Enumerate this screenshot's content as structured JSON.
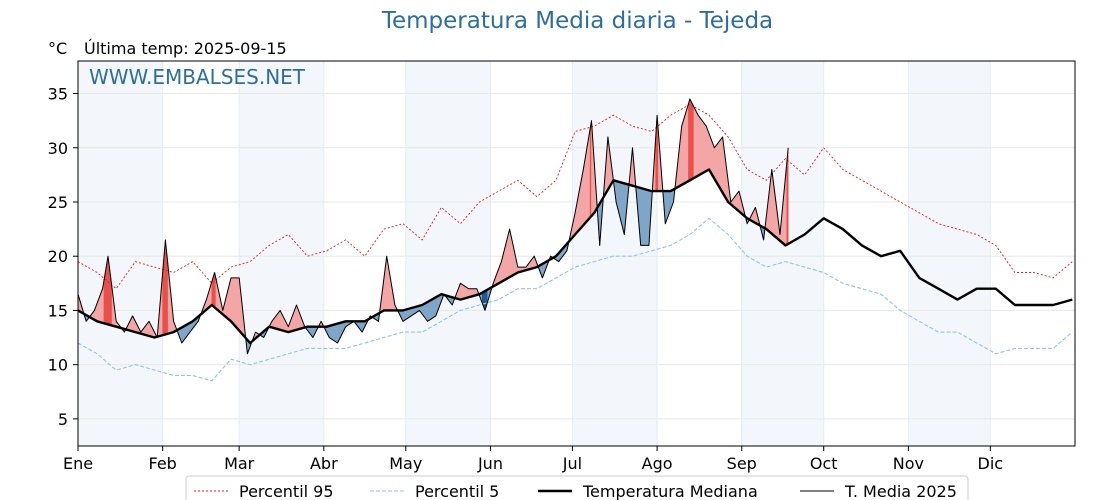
{
  "chart_data": {
    "type": "line",
    "title": "Temperatura Media diaria - Tejeda",
    "ylabel": "°C",
    "last_update_label": "Última temp: 2025-09-15",
    "watermark": "WWW.EMBALSES.NET",
    "ylim": [
      2.5,
      38
    ],
    "yticks": [
      5,
      10,
      15,
      20,
      25,
      30,
      35
    ],
    "x_axis": "day_of_year",
    "xlim": [
      1,
      366
    ],
    "month_ticks": [
      {
        "label": "Ene",
        "day": 1
      },
      {
        "label": "Feb",
        "day": 32
      },
      {
        "label": "Mar",
        "day": 60
      },
      {
        "label": "Abr",
        "day": 91
      },
      {
        "label": "May",
        "day": 121
      },
      {
        "label": "Jun",
        "day": 152
      },
      {
        "label": "Jul",
        "day": 182
      },
      {
        "label": "Ago",
        "day": 213
      },
      {
        "label": "Sep",
        "day": 244
      },
      {
        "label": "Oct",
        "day": 274
      },
      {
        "label": "Nov",
        "day": 305
      },
      {
        "label": "Dic",
        "day": 335
      }
    ],
    "grid": true,
    "legend_position": "bottom",
    "colors": {
      "p95": "#e31a1c",
      "p5": "#8fc7dc",
      "median": "#000000",
      "year": "#000000",
      "above_fill": "#f4a6a6",
      "above_fill_strong": "#e8504a",
      "below_fill": "#7fa6c8",
      "below_fill_strong": "#1f5a8f",
      "band_shade": "#f3f7fb",
      "title": "#2e6e9e"
    },
    "series": [
      {
        "name": "Percentil 95",
        "style": "dotted",
        "points": [
          [
            1,
            19.5
          ],
          [
            8,
            18.5
          ],
          [
            15,
            17
          ],
          [
            22,
            19.5
          ],
          [
            29,
            19
          ],
          [
            36,
            18.5
          ],
          [
            43,
            19.5
          ],
          [
            50,
            17.5
          ],
          [
            57,
            19
          ],
          [
            64,
            19.5
          ],
          [
            71,
            21
          ],
          [
            78,
            22
          ],
          [
            85,
            20
          ],
          [
            92,
            20.5
          ],
          [
            99,
            21.5
          ],
          [
            106,
            20
          ],
          [
            113,
            22.5
          ],
          [
            120,
            23
          ],
          [
            127,
            21.5
          ],
          [
            134,
            24.5
          ],
          [
            141,
            23
          ],
          [
            148,
            25
          ],
          [
            155,
            26
          ],
          [
            162,
            27
          ],
          [
            169,
            25.5
          ],
          [
            176,
            27
          ],
          [
            183,
            31.5
          ],
          [
            190,
            32
          ],
          [
            197,
            33
          ],
          [
            204,
            32
          ],
          [
            211,
            31.5
          ],
          [
            218,
            33
          ],
          [
            225,
            34
          ],
          [
            232,
            33
          ],
          [
            239,
            31
          ],
          [
            246,
            28
          ],
          [
            253,
            27
          ],
          [
            260,
            29
          ],
          [
            267,
            27.5
          ],
          [
            274,
            30
          ],
          [
            281,
            28
          ],
          [
            288,
            27
          ],
          [
            295,
            26
          ],
          [
            302,
            25
          ],
          [
            309,
            24
          ],
          [
            316,
            23
          ],
          [
            323,
            22.5
          ],
          [
            330,
            22
          ],
          [
            337,
            21
          ],
          [
            344,
            18.5
          ],
          [
            351,
            18.5
          ],
          [
            358,
            18
          ],
          [
            365,
            19.5
          ]
        ]
      },
      {
        "name": "Percentil 5",
        "style": "dashed",
        "points": [
          [
            1,
            12
          ],
          [
            8,
            11
          ],
          [
            15,
            9.5
          ],
          [
            22,
            10
          ],
          [
            29,
            9.5
          ],
          [
            36,
            9
          ],
          [
            43,
            9
          ],
          [
            50,
            8.5
          ],
          [
            57,
            10.5
          ],
          [
            64,
            10
          ],
          [
            71,
            10.5
          ],
          [
            78,
            11
          ],
          [
            85,
            11.5
          ],
          [
            92,
            11.5
          ],
          [
            99,
            11.5
          ],
          [
            106,
            12
          ],
          [
            113,
            12.5
          ],
          [
            120,
            13
          ],
          [
            127,
            13
          ],
          [
            134,
            14
          ],
          [
            141,
            15
          ],
          [
            148,
            15.5
          ],
          [
            155,
            16
          ],
          [
            162,
            17
          ],
          [
            169,
            17
          ],
          [
            176,
            18
          ],
          [
            183,
            19
          ],
          [
            190,
            19.5
          ],
          [
            197,
            20
          ],
          [
            204,
            20
          ],
          [
            211,
            20.5
          ],
          [
            218,
            21
          ],
          [
            225,
            22
          ],
          [
            232,
            23.5
          ],
          [
            239,
            22
          ],
          [
            246,
            20
          ],
          [
            253,
            19
          ],
          [
            260,
            19.5
          ],
          [
            267,
            19
          ],
          [
            274,
            18.5
          ],
          [
            281,
            17.5
          ],
          [
            288,
            17
          ],
          [
            295,
            16.5
          ],
          [
            302,
            15
          ],
          [
            309,
            14
          ],
          [
            316,
            13
          ],
          [
            323,
            13
          ],
          [
            330,
            12
          ],
          [
            337,
            11
          ],
          [
            344,
            11.5
          ],
          [
            351,
            11.5
          ],
          [
            358,
            11.5
          ],
          [
            365,
            13
          ]
        ]
      },
      {
        "name": "Temperatura Mediana",
        "style": "thick",
        "points": [
          [
            1,
            15
          ],
          [
            8,
            14
          ],
          [
            15,
            13.5
          ],
          [
            22,
            13
          ],
          [
            29,
            12.5
          ],
          [
            36,
            13
          ],
          [
            43,
            14
          ],
          [
            50,
            15.5
          ],
          [
            57,
            14
          ],
          [
            64,
            12
          ],
          [
            71,
            13.5
          ],
          [
            78,
            13
          ],
          [
            85,
            13.5
          ],
          [
            92,
            13.5
          ],
          [
            99,
            14
          ],
          [
            106,
            14
          ],
          [
            113,
            15
          ],
          [
            120,
            15
          ],
          [
            127,
            15.5
          ],
          [
            134,
            16.5
          ],
          [
            141,
            16
          ],
          [
            148,
            16.5
          ],
          [
            155,
            17.5
          ],
          [
            162,
            18.5
          ],
          [
            169,
            19
          ],
          [
            176,
            20
          ],
          [
            183,
            22
          ],
          [
            190,
            24
          ],
          [
            197,
            27
          ],
          [
            204,
            26.5
          ],
          [
            211,
            26
          ],
          [
            218,
            26
          ],
          [
            225,
            27
          ],
          [
            232,
            28
          ],
          [
            239,
            25
          ],
          [
            246,
            23.5
          ],
          [
            253,
            22.5
          ],
          [
            260,
            21
          ],
          [
            267,
            22
          ],
          [
            274,
            23.5
          ],
          [
            281,
            22.5
          ],
          [
            288,
            21
          ],
          [
            295,
            20
          ],
          [
            302,
            20.5
          ],
          [
            309,
            18
          ],
          [
            316,
            17
          ],
          [
            323,
            16
          ],
          [
            330,
            17
          ],
          [
            337,
            17
          ],
          [
            344,
            15.5
          ],
          [
            351,
            15.5
          ],
          [
            358,
            15.5
          ],
          [
            365,
            16
          ]
        ]
      },
      {
        "name": "T. Media 2025",
        "style": "thin",
        "points": [
          [
            1,
            16.5
          ],
          [
            4,
            14
          ],
          [
            7,
            15
          ],
          [
            10,
            17
          ],
          [
            12,
            20
          ],
          [
            15,
            14
          ],
          [
            18,
            13
          ],
          [
            21,
            14.5
          ],
          [
            24,
            13
          ],
          [
            27,
            14
          ],
          [
            30,
            12.5
          ],
          [
            33,
            21.5
          ],
          [
            36,
            14
          ],
          [
            39,
            12
          ],
          [
            42,
            13
          ],
          [
            45,
            14
          ],
          [
            48,
            16
          ],
          [
            51,
            18.5
          ],
          [
            54,
            15
          ],
          [
            57,
            18
          ],
          [
            60,
            18
          ],
          [
            63,
            11
          ],
          [
            66,
            13
          ],
          [
            69,
            12.5
          ],
          [
            72,
            14
          ],
          [
            75,
            15
          ],
          [
            78,
            13.5
          ],
          [
            81,
            15.5
          ],
          [
            84,
            13.5
          ],
          [
            87,
            12.5
          ],
          [
            90,
            14
          ],
          [
            93,
            12.5
          ],
          [
            96,
            12
          ],
          [
            99,
            13.5
          ],
          [
            102,
            14
          ],
          [
            105,
            13
          ],
          [
            108,
            14.5
          ],
          [
            111,
            14
          ],
          [
            114,
            20
          ],
          [
            117,
            15.5
          ],
          [
            120,
            14
          ],
          [
            123,
            14.5
          ],
          [
            126,
            15
          ],
          [
            129,
            14
          ],
          [
            132,
            14.5
          ],
          [
            135,
            16.5
          ],
          [
            138,
            15.5
          ],
          [
            141,
            17.5
          ],
          [
            144,
            17
          ],
          [
            147,
            17
          ],
          [
            150,
            15
          ],
          [
            153,
            17.5
          ],
          [
            156,
            19.5
          ],
          [
            159,
            22.5
          ],
          [
            162,
            19
          ],
          [
            165,
            19
          ],
          [
            168,
            20
          ],
          [
            171,
            18
          ],
          [
            174,
            20
          ],
          [
            177,
            19.5
          ],
          [
            180,
            20.5
          ],
          [
            183,
            24
          ],
          [
            186,
            28
          ],
          [
            189,
            32.5
          ],
          [
            192,
            21
          ],
          [
            195,
            31
          ],
          [
            198,
            25
          ],
          [
            201,
            22
          ],
          [
            204,
            30
          ],
          [
            207,
            21
          ],
          [
            210,
            21
          ],
          [
            213,
            33
          ],
          [
            216,
            23
          ],
          [
            219,
            25
          ],
          [
            222,
            32
          ],
          [
            225,
            34.5
          ],
          [
            228,
            33
          ],
          [
            231,
            32
          ],
          [
            234,
            30
          ],
          [
            237,
            31
          ],
          [
            240,
            25
          ],
          [
            243,
            26
          ],
          [
            246,
            23
          ],
          [
            249,
            24.5
          ],
          [
            252,
            21.5
          ],
          [
            255,
            28
          ],
          [
            258,
            22
          ],
          [
            261,
            30
          ]
        ]
      }
    ]
  },
  "legend": [
    {
      "label": "Percentil 95",
      "style": "dotted"
    },
    {
      "label": "Percentil 5",
      "style": "dashed"
    },
    {
      "label": "Temperatura Mediana",
      "style": "thick"
    },
    {
      "label": "T. Media 2025",
      "style": "thin"
    }
  ]
}
